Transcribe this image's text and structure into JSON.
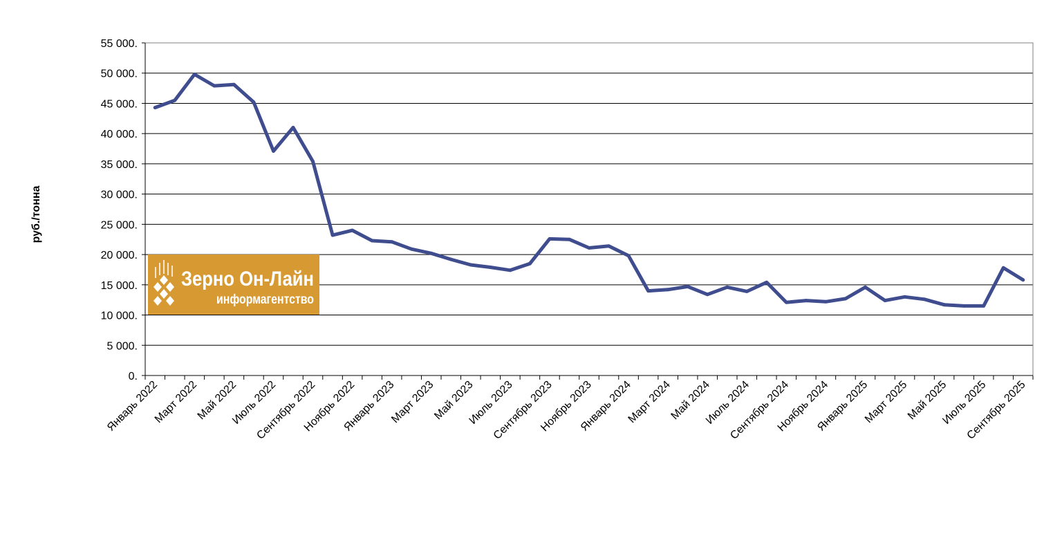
{
  "chart_data": {
    "type": "line",
    "ylabel": "руб./тонна",
    "ylim": [
      0,
      55000
    ],
    "yticks": [
      0,
      5000,
      10000,
      15000,
      20000,
      25000,
      30000,
      35000,
      40000,
      45000,
      50000,
      55000
    ],
    "ytick_labels": [
      "0.",
      "5 000.",
      "10 000.",
      "15 000.",
      "20 000.",
      "25 000.",
      "30 000.",
      "35 000.",
      "40 000.",
      "45 000.",
      "50 000.",
      "55 000."
    ],
    "x_labels": [
      "Январь 2022",
      "Март 2022",
      "Май 2022",
      "Июль 2022",
      "Сентябрь 2022",
      "Ноябрь 2022",
      "Январь 2023",
      "Март 2023",
      "Май 2023",
      "Июль 2023",
      "Сентябрь 2023",
      "Ноябрь 2023",
      "Январь 2024",
      "Март 2024",
      "Май 2024",
      "Июль 2024",
      "Сентябрь 2024",
      "Ноябрь 2024",
      "Январь 2025",
      "Март 2025",
      "Май 2025",
      "Июль 2025",
      "Сентябрь 2025"
    ],
    "grid": true,
    "line_color": "#3f4d8f",
    "series": [
      {
        "values": [
          44300,
          45500,
          49800,
          47900,
          48100,
          45200,
          37100,
          41000,
          35400,
          23200,
          24000,
          22300,
          22100,
          20900,
          20200,
          19200,
          18300,
          17900,
          17400,
          18500,
          22600,
          22500,
          21100,
          21400,
          19800,
          14000,
          14200,
          14700,
          13400,
          14600,
          13900,
          15400,
          12100,
          12400,
          12200,
          12700,
          14600,
          12400,
          13000,
          12600,
          11700,
          11500,
          11500,
          17800,
          15800
        ]
      }
    ]
  },
  "logo": {
    "title": "Зерно Он-Лайн",
    "subtitle": "информагентство",
    "bg_color": "#d79a33"
  }
}
